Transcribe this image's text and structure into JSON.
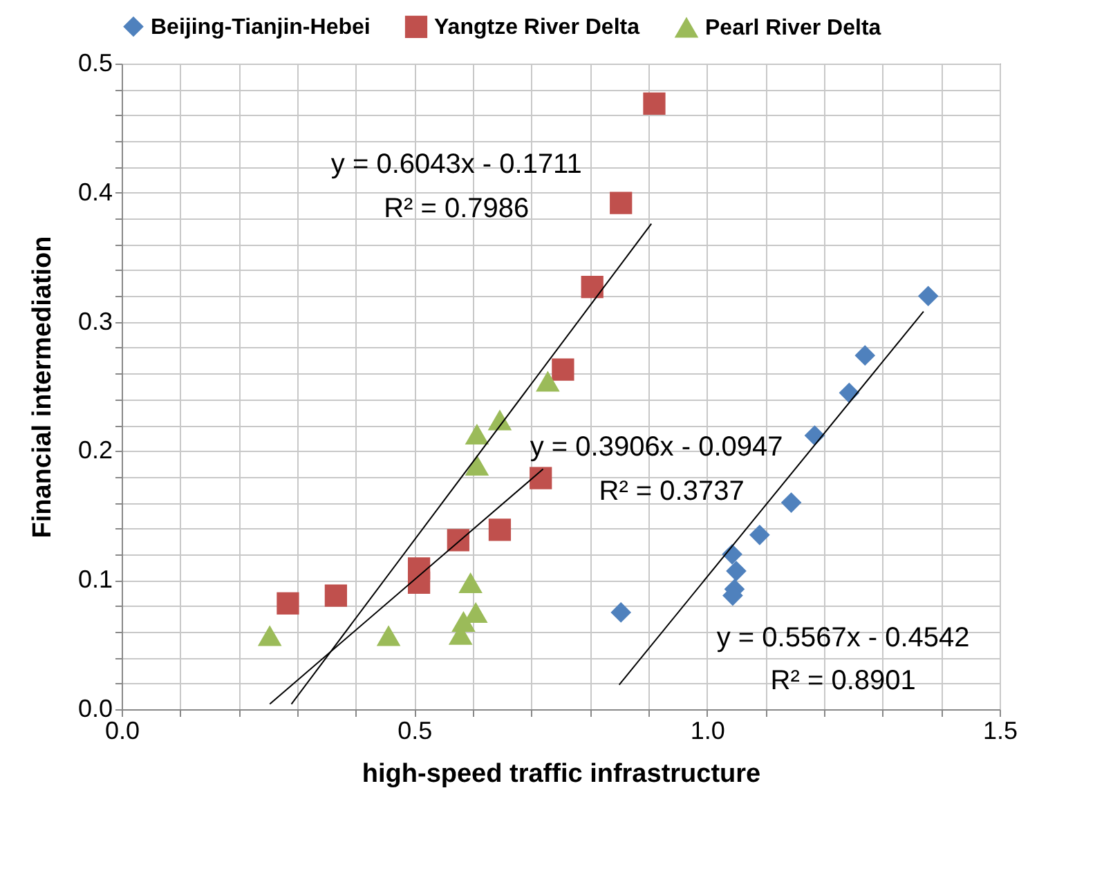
{
  "chart_data": {
    "type": "scatter",
    "xlabel": "high-speed traffic infrastructure",
    "ylabel": "Financial intermediation",
    "xlim": [
      0,
      1.5
    ],
    "ylim": [
      0,
      0.5
    ],
    "xticks": [
      {
        "value": 0,
        "label": "0.0"
      },
      {
        "value": 0.1,
        "label": null
      },
      {
        "value": 0.2,
        "label": null
      },
      {
        "value": 0.3,
        "label": null
      },
      {
        "value": 0.4,
        "label": null
      },
      0.5,
      {
        "value": 0.6,
        "label": null
      },
      {
        "value": 0.7,
        "label": null
      },
      {
        "value": 0.8,
        "label": null
      },
      {
        "value": 0.9,
        "label": null
      },
      {
        "value": 1,
        "label": "1.0"
      },
      {
        "value": 1.1,
        "label": null
      },
      {
        "value": 1.2,
        "label": null
      },
      {
        "value": 1.3,
        "label": null
      },
      {
        "value": 1.4,
        "label": null
      },
      1.5
    ],
    "yticks": [
      {
        "value": 0,
        "label": "0.0"
      },
      {
        "value": 0.02,
        "label": null
      },
      {
        "value": 0.04,
        "label": null
      },
      {
        "value": 0.06,
        "label": null
      },
      {
        "value": 0.08,
        "label": null
      },
      0.1,
      {
        "value": 0.12,
        "label": null
      },
      {
        "value": 0.14,
        "label": null
      },
      {
        "value": 0.16,
        "label": null
      },
      {
        "value": 0.18,
        "label": null
      },
      0.2,
      {
        "value": 0.22,
        "label": null
      },
      {
        "value": 0.24,
        "label": null
      },
      {
        "value": 0.26,
        "label": null
      },
      {
        "value": 0.28,
        "label": null
      },
      0.3,
      {
        "value": 0.32,
        "label": null
      },
      {
        "value": 0.34,
        "label": null
      },
      {
        "value": 0.36,
        "label": null
      },
      {
        "value": 0.38,
        "label": null
      },
      0.4,
      {
        "value": 0.42,
        "label": null
      },
      {
        "value": 0.44,
        "label": null
      },
      {
        "value": 0.46,
        "label": null
      },
      {
        "value": 0.48,
        "label": null
      },
      0.5
    ],
    "grid": true,
    "legend": "top",
    "series": [
      {
        "name": "Beijing-Tianjin-Hebei",
        "color": "#4f81bd",
        "marker": "diamond",
        "x": [
          0.853,
          1.043,
          1.05,
          1.047,
          1.044,
          1.09,
          1.144,
          1.184,
          1.243,
          1.27,
          1.378
        ],
        "values": [
          0.075,
          0.12,
          0.107,
          0.093,
          0.088,
          0.135,
          0.16,
          0.212,
          0.245,
          0.274,
          0.32
        ]
      },
      {
        "name": "Yangtze River Delta",
        "color": "#c0504d",
        "marker": "square",
        "x": [
          0.284,
          0.366,
          0.508,
          0.508,
          0.575,
          0.646,
          0.716,
          0.754,
          0.804,
          0.853,
          0.91
        ],
        "values": [
          0.082,
          0.088,
          0.109,
          0.098,
          0.131,
          0.139,
          0.179,
          0.263,
          0.327,
          0.392,
          0.469
        ]
      },
      {
        "name": "Pearl River Delta",
        "color": "#9bbb59",
        "marker": "triangle",
        "x": [
          0.253,
          0.456,
          0.579,
          0.584,
          0.605,
          0.596,
          0.607,
          0.607,
          0.646,
          0.728
        ],
        "values": [
          0.057,
          0.057,
          0.058,
          0.068,
          0.075,
          0.098,
          0.189,
          0.213,
          0.224,
          0.254
        ]
      },
      {
        "type": "line",
        "color": "#000000",
        "marker": "none",
        "x": [
          0.29,
          0.905
        ],
        "values": [
          0.004,
          0.376
        ]
      },
      {
        "type": "line",
        "color": "#000000",
        "marker": "none",
        "x": [
          0.253,
          0.72
        ],
        "values": [
          0.004,
          0.186
        ]
      },
      {
        "type": "line",
        "color": "#000000",
        "marker": "none",
        "x": [
          0.85,
          1.37
        ],
        "values": [
          0.019,
          0.308
        ]
      }
    ],
    "annotations": [
      "y = 0.6043x - 0.1711",
      "R² = 0.7986",
      "y = 0.3906x - 0.0947",
      "R² = 0.3737",
      "y = 0.5567x - 0.4542",
      "R² = 0.8901"
    ]
  }
}
